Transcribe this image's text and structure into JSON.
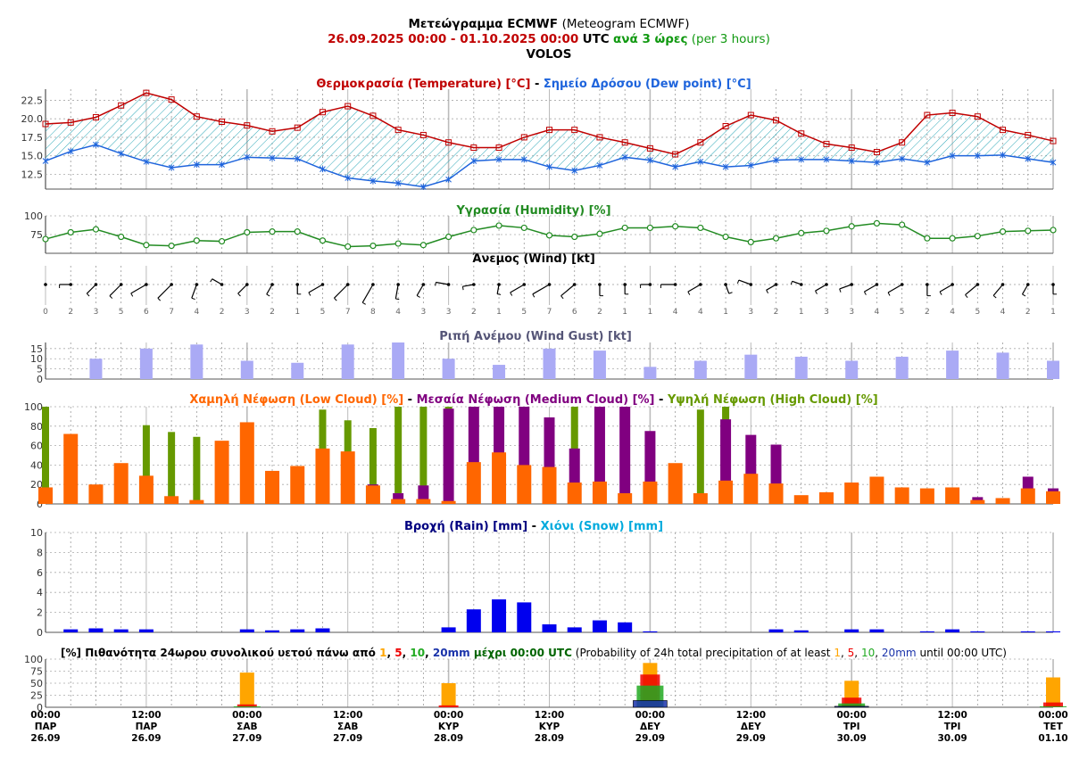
{
  "header": {
    "title_gr": "Μετεώγραμμα ECMWF",
    "title_en": "(Meteogram ECMWF)",
    "range": "26.09.2025 00:00 - 01.10.2025 00:00",
    "utc": "UTC",
    "step_gr": "ανά 3 ώρες",
    "step_en": "(per 3 hours)",
    "location": "VOLOS"
  },
  "colors": {
    "temperature": "#c00000",
    "dewpoint": "#1e64dc",
    "humidity": "#228b22",
    "gust": "#aaaaf5",
    "low_cloud": "#ff6600",
    "medium_cloud": "#800080",
    "high_cloud": "#669900",
    "rain": "#0000ee",
    "snow": "#00aadd",
    "gust_title": "#555577",
    "prob_1": "#ffa500",
    "prob_5": "#ee0000",
    "prob_10": "#22aa22",
    "prob_20": "#1a33aa",
    "dark_green": "#006400"
  },
  "chart_data": [
    {
      "id": "temperature",
      "type": "line",
      "title_parts": [
        "Θερμοκρασία (Temperature) [°C]",
        " - ",
        "Σημείο Δρόσου (Dew point) [°C]"
      ],
      "ylim": [
        10.5,
        24
      ],
      "yticks": [
        12.5,
        15.0,
        17.5,
        20.0,
        22.5
      ],
      "grid": true,
      "series": [
        {
          "name": "Θερμοκρασία (Temperature) [°C]",
          "values": [
            19.3,
            19.5,
            20.2,
            21.8,
            23.5,
            22.6,
            20.3,
            19.6,
            19.1,
            18.3,
            18.8,
            20.9,
            21.7,
            20.4,
            18.5,
            17.8,
            16.8,
            16.1,
            16.1,
            17.5,
            18.5,
            18.5,
            17.5,
            16.8,
            16.0,
            15.2,
            16.8,
            19.0,
            20.5,
            19.8,
            18.0,
            16.6,
            16.1,
            15.5,
            16.8,
            20.5,
            20.8,
            20.3,
            18.5,
            17.8,
            17.0
          ]
        },
        {
          "name": "Σημείο Δρόσου (Dew point) [°C]",
          "values": [
            14.3,
            15.6,
            16.5,
            15.3,
            14.2,
            13.4,
            13.8,
            13.8,
            14.8,
            14.7,
            14.6,
            13.2,
            12.0,
            11.6,
            11.3,
            10.8,
            11.8,
            14.3,
            14.5,
            14.5,
            13.5,
            13.0,
            13.7,
            14.8,
            14.4,
            13.5,
            14.2,
            13.5,
            13.7,
            14.4,
            14.5,
            14.5,
            14.3,
            14.1,
            14.6,
            14.1,
            15.0,
            15.0,
            15.1,
            14.6,
            14.1
          ]
        }
      ]
    },
    {
      "id": "humidity",
      "type": "line",
      "title": "Υγρασία (Humidity) [%]",
      "ylim": [
        50,
        100
      ],
      "yticks": [
        75,
        100
      ],
      "series": [
        {
          "name": "Υγρασία (Humidity) [%]",
          "values": [
            69,
            78,
            82,
            72,
            61,
            60,
            67,
            66,
            78,
            79,
            79,
            67,
            59,
            60,
            63,
            61,
            72,
            81,
            87,
            84,
            74,
            72,
            76,
            84,
            84,
            86,
            84,
            72,
            65,
            70,
            77,
            80,
            86,
            90,
            88,
            70,
            70,
            73,
            79,
            80,
            81
          ]
        }
      ]
    },
    {
      "id": "wind",
      "type": "scatter",
      "title": "Άνεμος (Wind) [kt]",
      "speed_kt": [
        0,
        2,
        3,
        5,
        6,
        7,
        4,
        2,
        3,
        2,
        1,
        5,
        7,
        8,
        4,
        3,
        3,
        2,
        1,
        5,
        7,
        6,
        2,
        1,
        1,
        4,
        4,
        1,
        3,
        2,
        1,
        3,
        3,
        4,
        5,
        2,
        4,
        5,
        4,
        2,
        1
      ],
      "direction_deg": [
        0,
        270,
        315,
        315,
        300,
        315,
        340,
        240,
        315,
        330,
        0,
        300,
        315,
        330,
        350,
        330,
        260,
        280,
        350,
        300,
        300,
        310,
        360,
        0,
        270,
        270,
        300,
        20,
        250,
        300,
        250,
        300,
        290,
        300,
        300,
        0,
        300,
        310,
        320,
        330,
        0
      ]
    },
    {
      "id": "gust",
      "type": "bar",
      "title": "Ριπή Ανέμου (Wind Gust) [kt]",
      "ylim": [
        0,
        18
      ],
      "yticks": [
        0,
        5,
        10,
        15
      ],
      "x_index": [
        2,
        4,
        6,
        8,
        10,
        12,
        14,
        16,
        18,
        20,
        22,
        24,
        26,
        28,
        30,
        32,
        34,
        36,
        38,
        40
      ],
      "values": [
        10,
        15,
        17,
        9,
        8,
        17,
        18,
        10,
        7,
        15,
        14,
        6,
        9,
        12,
        11,
        9,
        11,
        14,
        13,
        9
      ]
    },
    {
      "id": "cloud",
      "type": "bar",
      "title_parts": [
        "Χαμηλή Νέφωση (Low Cloud) [%]",
        " - ",
        "Μεσαία Νέφωση (Medium Cloud) [%]",
        " - ",
        "Υψηλή Νέφωση (High Cloud) [%]"
      ],
      "ylim": [
        0,
        100
      ],
      "yticks": [
        0,
        20,
        40,
        60,
        80,
        100
      ],
      "series": [
        {
          "name": "Χαμηλή Νέφωση (Low Cloud) [%]",
          "values": [
            17,
            72,
            20,
            42,
            29,
            8,
            4,
            65,
            84,
            34,
            39,
            57,
            54,
            19,
            5,
            5,
            3,
            43,
            53,
            40,
            38,
            22,
            23,
            11,
            23,
            42,
            11,
            24,
            31,
            21,
            9,
            12,
            22,
            28,
            17,
            16,
            17,
            4,
            6,
            16,
            13
          ]
        },
        {
          "name": "Μεσαία Νέφωση (Medium Cloud) [%]",
          "values": [
            0,
            0,
            0,
            0,
            0,
            0,
            0,
            0,
            0,
            0,
            0,
            0,
            0,
            20,
            11,
            19,
            98,
            100,
            100,
            100,
            89,
            57,
            100,
            100,
            75,
            0,
            0,
            87,
            71,
            61,
            0,
            0,
            0,
            0,
            0,
            0,
            0,
            7,
            0,
            28,
            16
          ]
        },
        {
          "name": "Υψηλή Νέφωση (High Cloud) [%]",
          "values": [
            100,
            0,
            0,
            0,
            81,
            74,
            69,
            0,
            0,
            0,
            0,
            97,
            86,
            78,
            100,
            100,
            100,
            0,
            0,
            0,
            0,
            100,
            0,
            0,
            0,
            0,
            97,
            100,
            0,
            0,
            0,
            0,
            0,
            0,
            0,
            0,
            0,
            0,
            0,
            0,
            0
          ]
        }
      ]
    },
    {
      "id": "precip",
      "type": "bar",
      "title_parts": [
        "Βροχή (Rain) [mm]",
        " - ",
        "Χιόνι (Snow) [mm]"
      ],
      "ylim": [
        0,
        10
      ],
      "yticks": [
        0,
        2,
        4,
        6,
        8,
        10
      ],
      "series": [
        {
          "name": "Βροχή (Rain) [mm]",
          "values": [
            0,
            0.3,
            0.4,
            0.3,
            0.3,
            0,
            0,
            0,
            0.3,
            0.2,
            0.3,
            0.4,
            0,
            0,
            0,
            0,
            0.5,
            2.3,
            3.3,
            3.0,
            0.8,
            0.5,
            1.2,
            1.0,
            0.1,
            0,
            0,
            0,
            0,
            0.3,
            0.2,
            0,
            0.3,
            0.3,
            0,
            0.1,
            0.3,
            0.1,
            0,
            0.1,
            0.1
          ]
        },
        {
          "name": "Χιόνι (Snow) [mm]",
          "values": [
            0,
            0,
            0,
            0,
            0,
            0,
            0,
            0,
            0,
            0,
            0,
            0,
            0,
            0,
            0,
            0,
            0,
            0,
            0,
            0,
            0,
            0,
            0,
            0,
            0,
            0,
            0,
            0,
            0,
            0,
            0,
            0,
            0,
            0,
            0,
            0,
            0,
            0,
            0,
            0,
            0
          ]
        }
      ]
    },
    {
      "id": "probability",
      "type": "bar",
      "title_parts": [
        "[%] Πιθανότητα 24ωρου συνολικού υετού πάνω από ",
        "1",
        ", ",
        "5",
        ", ",
        "10",
        ", ",
        "20mm",
        " μέχρι 00:00 UTC",
        " (Probability of 24h total precipitation of at least ",
        "1",
        ", ",
        "5",
        ", ",
        "10",
        ", ",
        "20mm",
        " until 00:00 UTC)"
      ],
      "ylim": [
        0,
        100
      ],
      "yticks": [
        0,
        25,
        50,
        75,
        100
      ],
      "x_index": [
        8,
        16,
        24,
        32,
        40
      ],
      "series": [
        {
          "name": "1mm",
          "values": [
            72,
            50,
            92,
            55,
            62
          ]
        },
        {
          "name": "5mm",
          "values": [
            6,
            4,
            68,
            20,
            10
          ]
        },
        {
          "name": "10mm",
          "values": [
            2,
            0,
            45,
            8,
            2
          ]
        },
        {
          "name": "20mm",
          "values": [
            0,
            0,
            14,
            2,
            0
          ]
        }
      ]
    }
  ],
  "x_axis": {
    "labels": [
      {
        "i": 0,
        "time": "00:00",
        "day": "ΠΑΡ",
        "date": "26.09"
      },
      {
        "i": 4,
        "time": "12:00",
        "day": "ΠΑΡ",
        "date": "26.09"
      },
      {
        "i": 8,
        "time": "00:00",
        "day": "ΣΑΒ",
        "date": "27.09"
      },
      {
        "i": 12,
        "time": "12:00",
        "day": "ΣΑΒ",
        "date": "27.09"
      },
      {
        "i": 16,
        "time": "00:00",
        "day": "ΚΥΡ",
        "date": "28.09"
      },
      {
        "i": 20,
        "time": "12:00",
        "day": "ΚΥΡ",
        "date": "28.09"
      },
      {
        "i": 24,
        "time": "00:00",
        "day": "ΔΕΥ",
        "date": "29.09"
      },
      {
        "i": 28,
        "time": "12:00",
        "day": "ΔΕΥ",
        "date": "29.09"
      },
      {
        "i": 32,
        "time": "00:00",
        "day": "ΤΡΙ",
        "date": "30.09"
      },
      {
        "i": 36,
        "time": "12:00",
        "day": "ΤΡΙ",
        "date": "30.09"
      },
      {
        "i": 40,
        "time": "00:00",
        "day": "ΤΕΤ",
        "date": "01.10"
      }
    ]
  }
}
